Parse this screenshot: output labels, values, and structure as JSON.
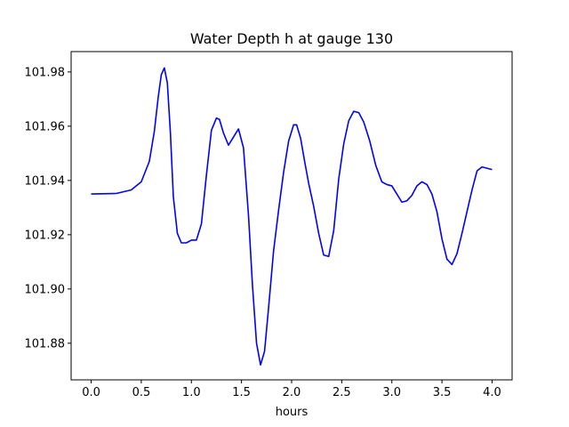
{
  "chart_data": {
    "type": "line",
    "title": "Water Depth h at gauge 130",
    "xlabel": "hours",
    "ylabel": "",
    "xlim": [
      -0.2,
      4.2
    ],
    "ylim": [
      101.8665,
      101.9875
    ],
    "xticks": [
      0.0,
      0.5,
      1.0,
      1.5,
      2.0,
      2.5,
      3.0,
      3.5,
      4.0
    ],
    "xtick_labels": [
      "0.0",
      "0.5",
      "1.0",
      "1.5",
      "2.0",
      "2.5",
      "3.0",
      "3.5",
      "4.0"
    ],
    "yticks": [
      101.88,
      101.9,
      101.92,
      101.94,
      101.96,
      101.98
    ],
    "ytick_labels": [
      "101.88",
      "101.90",
      "101.92",
      "101.94",
      "101.96",
      "101.98"
    ],
    "grid": false,
    "series": [
      {
        "color": "#0000ff",
        "x": [
          0.0,
          0.25,
          0.4,
          0.5,
          0.58,
          0.63,
          0.67,
          0.7,
          0.73,
          0.76,
          0.79,
          0.82,
          0.86,
          0.9,
          0.95,
          1.0,
          1.05,
          1.1,
          1.15,
          1.2,
          1.25,
          1.28,
          1.32,
          1.37,
          1.42,
          1.47,
          1.52,
          1.57,
          1.61,
          1.65,
          1.69,
          1.73,
          1.77,
          1.82,
          1.87,
          1.92,
          1.97,
          2.02,
          2.05,
          2.09,
          2.13,
          2.17,
          2.22,
          2.27,
          2.32,
          2.37,
          2.42,
          2.47,
          2.52,
          2.57,
          2.62,
          2.67,
          2.72,
          2.78,
          2.84,
          2.9,
          2.95,
          3.0,
          3.05,
          3.1,
          3.15,
          3.2,
          3.25,
          3.3,
          3.35,
          3.4,
          3.45,
          3.5,
          3.55,
          3.6,
          3.65,
          3.7,
          3.75,
          3.8,
          3.85,
          3.9,
          3.95,
          4.0
        ],
        "y": [
          101.935,
          101.9352,
          101.9365,
          101.9395,
          101.947,
          101.958,
          101.971,
          101.979,
          101.9815,
          101.976,
          101.958,
          101.934,
          101.9205,
          101.917,
          101.917,
          101.918,
          101.918,
          101.924,
          101.942,
          101.9585,
          101.963,
          101.9625,
          101.9575,
          101.953,
          101.956,
          101.959,
          101.952,
          101.927,
          101.901,
          101.88,
          101.872,
          101.877,
          101.893,
          101.914,
          101.929,
          101.943,
          101.9545,
          101.9605,
          101.9605,
          101.9555,
          101.947,
          101.939,
          101.9305,
          101.9205,
          101.9125,
          101.912,
          101.9215,
          101.9405,
          101.9535,
          101.962,
          101.9655,
          101.965,
          101.9615,
          101.9545,
          101.9455,
          101.9395,
          101.9385,
          101.938,
          101.935,
          101.932,
          101.9325,
          101.9345,
          101.938,
          101.9395,
          101.9385,
          101.935,
          101.9285,
          101.9185,
          101.911,
          101.909,
          101.913,
          101.9205,
          101.9285,
          101.9365,
          101.9435,
          101.945,
          101.9445,
          101.944
        ]
      }
    ]
  }
}
